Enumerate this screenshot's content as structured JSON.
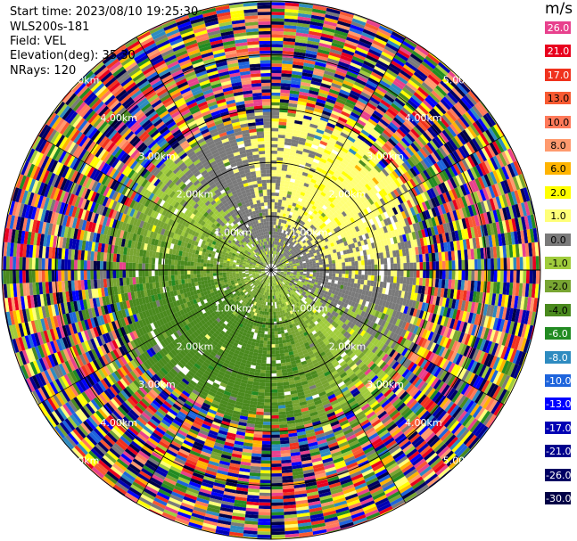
{
  "header": {
    "start_time": "Start time: 2023/08/10 19:25:30",
    "instrument": "WLS200s-181",
    "field": "Field: VEL",
    "elevation": "Elevation(deg): 35.30",
    "nrays": "NRays: 120"
  },
  "colorbar": {
    "title": "m/s",
    "levels": [
      {
        "label": "26.0",
        "color": "#e8418d"
      },
      {
        "label": "21.0",
        "color": "#e8001e"
      },
      {
        "label": "17.0",
        "color": "#f0321e"
      },
      {
        "label": "13.0",
        "color": "#f85a32"
      },
      {
        "label": "10.0",
        "color": "#ff7a5a"
      },
      {
        "label": "8.0",
        "color": "#ff9a6e"
      },
      {
        "label": "6.0",
        "color": "#ffb400"
      },
      {
        "label": "2.0",
        "color": "#ffff00"
      },
      {
        "label": "1.0",
        "color": "#ffff78"
      },
      {
        "label": "0.0",
        "color": "#7a7a7a"
      },
      {
        "label": "-1.0",
        "color": "#a0cc3c"
      },
      {
        "label": "-2.0",
        "color": "#78a532"
      },
      {
        "label": "-4.0",
        "color": "#4a8a1e"
      },
      {
        "label": "-6.0",
        "color": "#228b22"
      },
      {
        "label": "-8.0",
        "color": "#2e8bc0"
      },
      {
        "label": "-10.0",
        "color": "#1e64dc"
      },
      {
        "label": "-13.0",
        "color": "#0000ff"
      },
      {
        "label": "-17.0",
        "color": "#0000b4"
      },
      {
        "label": "-21.0",
        "color": "#00008c"
      },
      {
        "label": "-26.0",
        "color": "#000064"
      },
      {
        "label": "-30.0",
        "color": "#000046"
      }
    ]
  },
  "chart_data": {
    "type": "heatmap",
    "projection": "polar PPI",
    "field": "VEL",
    "units": "m/s",
    "n_rays": 120,
    "range_rings_km": [
      1.0,
      2.0,
      3.0,
      4.0,
      5.0
    ],
    "ring_labels": [
      "1.00km",
      "2.00km",
      "3.00km",
      "4.00km",
      "5.00km"
    ],
    "range_max_km": 5.0,
    "spokes_deg": [
      0,
      30,
      60,
      90,
      120,
      150,
      180,
      210,
      240,
      270,
      300,
      330
    ],
    "pattern": {
      "northeast_sector": "positive (yellow, ~1 to 2 m/s)",
      "southwest_sector": "negative (green, ~-1 to -6 m/s)",
      "outer_ranges": "noise (mixed colors across full scale)"
    }
  }
}
